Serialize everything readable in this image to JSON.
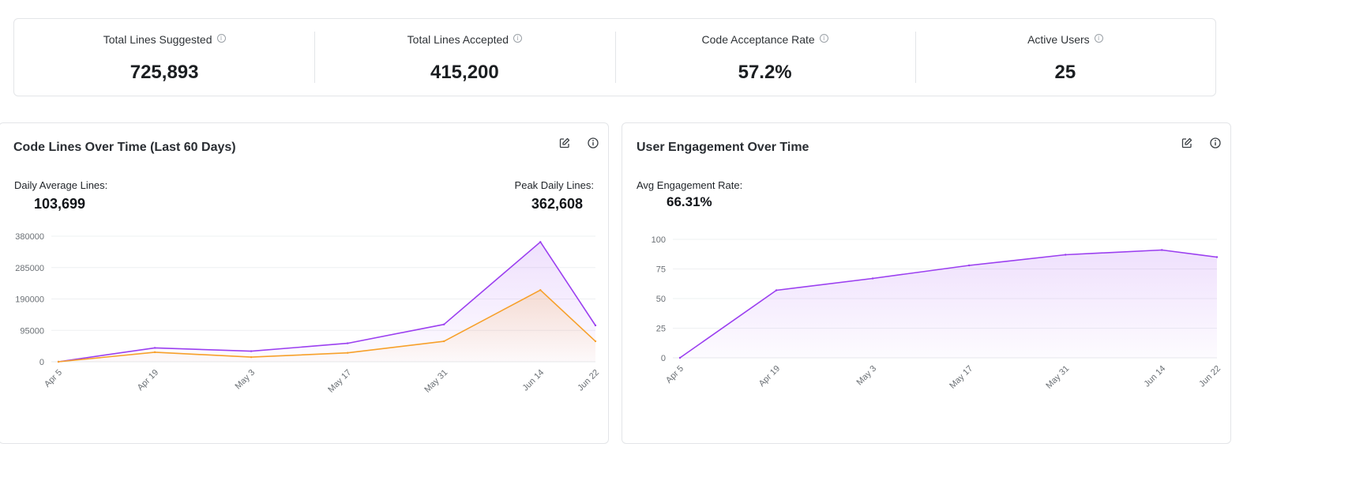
{
  "stats": [
    {
      "label": "Total Lines Suggested",
      "value": "725,893"
    },
    {
      "label": "Total Lines Accepted",
      "value": "415,200"
    },
    {
      "label": "Code Acceptance Rate",
      "value": "57.2%"
    },
    {
      "label": "Active Users",
      "value": "25"
    }
  ],
  "icons": {
    "info": "info-icon",
    "edit": "edit-icon"
  },
  "colors": {
    "suggested": "#9b3ff0",
    "accepted": "#f7a02a",
    "engagement": "#9b3ff0"
  },
  "code_lines": {
    "title": "Code Lines Over Time (Last 60 Days)",
    "daily_avg_label": "Daily Average Lines:",
    "daily_avg_value": "103,699",
    "peak_label": "Peak Daily Lines:",
    "peak_value": "362,608"
  },
  "engagement": {
    "title": "User Engagement Over Time",
    "avg_label": "Avg Engagement Rate:",
    "avg_value": "66.31%"
  },
  "chart_data": [
    {
      "type": "area",
      "title": "Code Lines Over Time (Last 60 Days)",
      "categories": [
        "Apr 5",
        "Apr 19",
        "May 3",
        "May 17",
        "May 31",
        "Jun 14",
        "Jun 22"
      ],
      "x_positions": [
        0,
        14,
        28,
        42,
        56,
        70,
        78
      ],
      "yticks": [
        0,
        95000,
        190000,
        285000,
        380000
      ],
      "ylim": [
        0,
        380000
      ],
      "series": [
        {
          "values": [
            0,
            42000,
            32000,
            56000,
            113000,
            362608,
            110000
          ]
        },
        {
          "values": [
            0,
            29000,
            14000,
            27000,
            62000,
            217000,
            62000
          ]
        }
      ],
      "grid": true
    },
    {
      "type": "area",
      "title": "User Engagement Over Time",
      "categories": [
        "Apr 5",
        "Apr 19",
        "May 3",
        "May 17",
        "May 31",
        "Jun 14",
        "Jun 22"
      ],
      "x_positions": [
        0,
        14,
        28,
        42,
        56,
        70,
        78
      ],
      "yticks": [
        0,
        25,
        50,
        75,
        100
      ],
      "ylim": [
        0,
        100
      ],
      "series": [
        {
          "values": [
            0,
            57,
            67,
            78,
            87,
            91,
            85
          ]
        }
      ],
      "grid": true
    }
  ]
}
